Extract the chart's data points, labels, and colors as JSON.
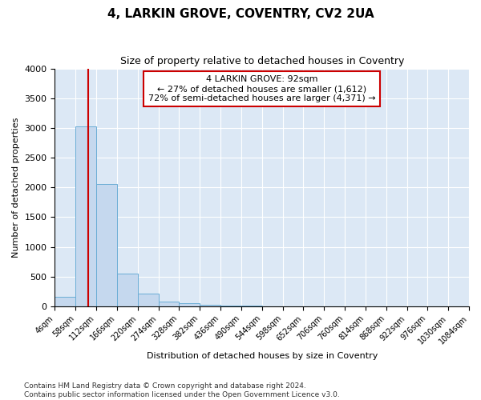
{
  "title": "4, LARKIN GROVE, COVENTRY, CV2 2UA",
  "subtitle": "Size of property relative to detached houses in Coventry",
  "xlabel": "Distribution of detached houses by size in Coventry",
  "ylabel": "Number of detached properties",
  "footnote1": "Contains HM Land Registry data © Crown copyright and database right 2024.",
  "footnote2": "Contains public sector information licensed under the Open Government Licence v3.0.",
  "annotation_line1": "4 LARKIN GROVE: 92sqm",
  "annotation_line2": "← 27% of detached houses are smaller (1,612)",
  "annotation_line3": "72% of semi-detached houses are larger (4,371) →",
  "property_size": 92,
  "bar_color": "#c5d8ee",
  "bar_edge_color": "#6aadd5",
  "vline_color": "#cc0000",
  "annotation_box_edge_color": "#cc0000",
  "bin_edges": [
    4,
    58,
    112,
    166,
    220,
    274,
    328,
    382,
    436,
    490,
    544,
    598,
    652,
    706,
    760,
    814,
    868,
    922,
    976,
    1030,
    1084
  ],
  "bar_heights": [
    155,
    3030,
    2060,
    550,
    210,
    75,
    55,
    25,
    12,
    6,
    4,
    3,
    2,
    1,
    1,
    1,
    1,
    0,
    0,
    0
  ],
  "ylim": [
    0,
    4000
  ],
  "yticks": [
    0,
    500,
    1000,
    1500,
    2000,
    2500,
    3000,
    3500,
    4000
  ],
  "figure_bg": "#ffffff",
  "axes_bg": "#dce8f5",
  "grid_color": "#ffffff",
  "title_fontsize": 11,
  "subtitle_fontsize": 9,
  "ylabel_fontsize": 8,
  "xlabel_fontsize": 8,
  "ytick_fontsize": 8,
  "xtick_fontsize": 7,
  "footnote_fontsize": 6.5
}
